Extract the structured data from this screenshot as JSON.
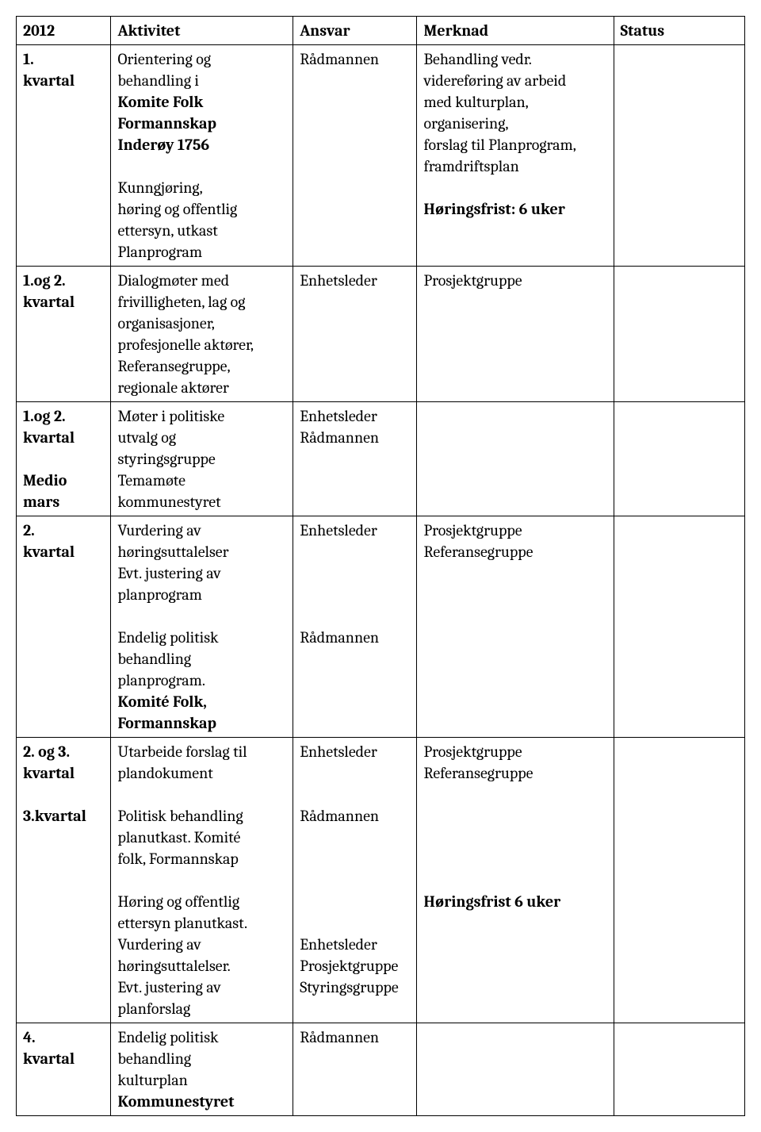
{
  "table": {
    "columns": {
      "c1": "2012",
      "c2": "Aktivitet",
      "c3": "Ansvar",
      "c4": "Merknad",
      "c5": "Status"
    },
    "col_widths_pct": [
      13,
      25,
      17,
      27,
      18
    ],
    "border_color": "#000000",
    "background_color": "#ffffff",
    "font_size_pt": 15,
    "rows": [
      {
        "period": {
          "l1": "1.",
          "l2": "kvartal"
        },
        "aktivitet": {
          "p1_l1": "Orientering og",
          "p1_l2": "behandling i",
          "b1": "Komite Folk",
          "b2": "Formannskap",
          "b3": "Inderøy 1756",
          "p2_l1": "Kunngjøring,",
          "p2_l2": "høring og offentlig",
          "p2_l3": "ettersyn, utkast",
          "p2_l4": "Planprogram"
        },
        "ansvar": {
          "l1": "Rådmannen"
        },
        "merknad": {
          "l1": "Behandling vedr.",
          "l2": "videreføring av arbeid",
          "l3": "med kulturplan,",
          "l4": "organisering,",
          "l5": "forslag til Planprogram,",
          "l6": "framdriftsplan",
          "b1": "Høringsfrist: 6 uker"
        },
        "status": ""
      },
      {
        "period": {
          "l1": "1.og 2.",
          "l2": "kvartal"
        },
        "aktivitet": {
          "l1": "Dialogmøter med",
          "l2": "frivilligheten, lag og",
          "l3": "organisasjoner,",
          "l4": "profesjonelle aktører,",
          "l5": "Referansegruppe,",
          "l6": "regionale aktører"
        },
        "ansvar": {
          "l1": "Enhetsleder"
        },
        "merknad": {
          "l1": "Prosjektgruppe"
        },
        "status": ""
      },
      {
        "period": {
          "l1": "1.og 2.",
          "l2": "kvartal",
          "l3": "Medio",
          "l4": "mars"
        },
        "aktivitet": {
          "l1": "Møter i politiske",
          "l2": "utvalg og",
          "l3": "styringsgruppe",
          "l4": "Temamøte",
          "l5": "kommunestyret"
        },
        "ansvar": {
          "l1": "Enhetsleder",
          "l2": "Rådmannen"
        },
        "merknad": {
          "l1": ""
        },
        "status": ""
      },
      {
        "period": {
          "l1": " 2.",
          "l2": "kvartal"
        },
        "aktivitet": {
          "l1": "Vurdering av",
          "l2": "høringsuttalelser",
          "l3": "Evt. justering av",
          "l4": "planprogram",
          "l5": "Endelig politisk",
          "l6": "behandling",
          "l7": "planprogram.",
          "b1": "Komité Folk,",
          "b2": "Formannskap"
        },
        "ansvar": {
          "l1": "Enhetsleder",
          "l2": "Rådmannen"
        },
        "merknad": {
          "l1": "Prosjektgruppe",
          "l2": "Referansegruppe"
        },
        "status": ""
      },
      {
        "period": {
          "l1": "2. og 3.",
          "l2": "kvartal",
          "l3": "3.kvartal"
        },
        "aktivitet": {
          "l1": "Utarbeide forslag til",
          "l2": "plandokument",
          "l3": "Politisk behandling",
          "l4": "planutkast. Komité",
          "l5": "folk, Formannskap",
          "l6": "Høring og offentlig",
          "l7": "ettersyn planutkast.",
          "l8": "Vurdering av",
          "l9": "høringsuttalelser.",
          "l10": "Evt. justering av",
          "l11": "planforslag"
        },
        "ansvar": {
          "l1": "Enhetsleder",
          "l2": "Rådmannen",
          "l3": "Enhetsleder",
          "l4": "Prosjektgruppe",
          "l5": "Styringsgruppe"
        },
        "merknad": {
          "l1": "Prosjektgruppe",
          "l2": "Referansegruppe",
          "b1": "Høringsfrist 6 uker"
        },
        "status": ""
      },
      {
        "period": {
          "l1": "4.",
          "l2": "kvartal"
        },
        "aktivitet": {
          "l1": "Endelig politisk",
          "l2": "behandling",
          "l3": "kulturplan",
          "b1": "Kommunestyret"
        },
        "ansvar": {
          "l1": "Rådmannen"
        },
        "merknad": {
          "l1": ""
        },
        "status": ""
      }
    ]
  }
}
